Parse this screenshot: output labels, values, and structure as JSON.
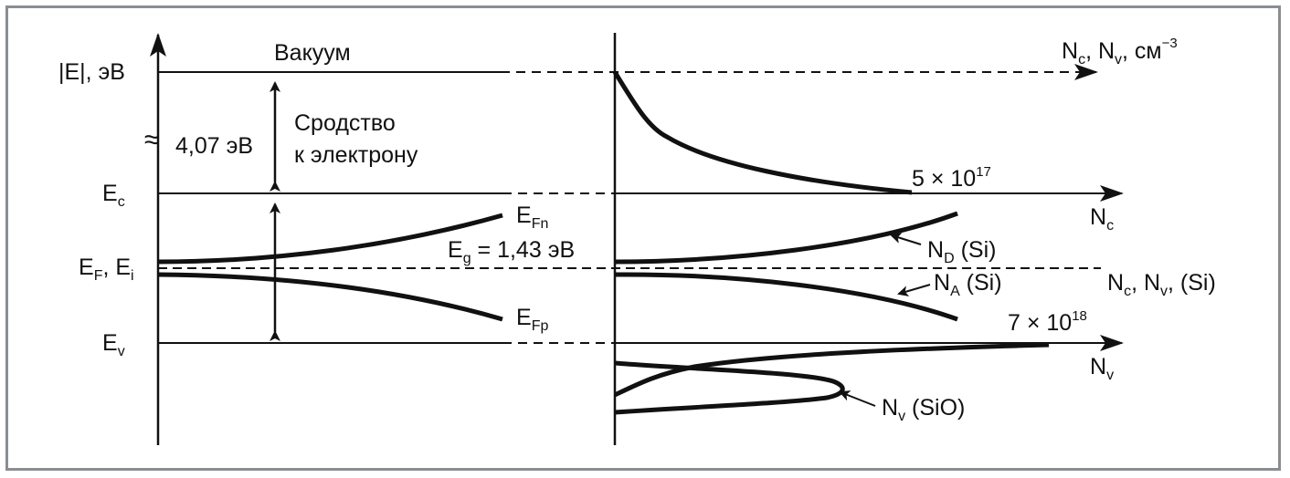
{
  "diagram": {
    "left": {
      "axis_label": "|E|, эВ",
      "vacuum": "Вакуум",
      "break_symbol": "≈",
      "work_value": "4,07 эВ",
      "affinity_line1": "Сродство",
      "affinity_line2": "к электрону",
      "ec": {
        "main": "E",
        "sub": "c"
      },
      "ef_ei": {
        "main1": "E",
        "sub1": "F",
        "sep": ", E",
        "sub2": "i"
      },
      "ev": {
        "main": "E",
        "sub": "v"
      },
      "efn": {
        "main": "E",
        "sub": "Fn"
      },
      "efp": {
        "main": "E",
        "sub": "Fp"
      },
      "eg": {
        "main": "E",
        "sub": "g",
        "value": " = 1,43 эВ"
      }
    },
    "right": {
      "axis_top": {
        "n1": "N",
        "s1": "c",
        "sep": ", N",
        "s2": "v",
        "unit": ", см",
        "sup": "−3"
      },
      "nc_max": {
        "text": "5 × 10",
        "sup": "17"
      },
      "nc_axis": {
        "main": "N",
        "sub": "c"
      },
      "nd": {
        "main": "N",
        "sub": "D",
        "rest": " (Si)"
      },
      "na": {
        "main": "N",
        "sub": "A",
        "rest": " (Si)"
      },
      "ncnv_si": {
        "n1": "N",
        "s1": "c",
        "sep": ", N",
        "s2": "v",
        "rest": ", (Si)"
      },
      "nv_max": {
        "text": "7 × 10",
        "sup": "18"
      },
      "nv_axis": {
        "main": "N",
        "sub": "v"
      },
      "nv_sio": {
        "main": "N",
        "sub": "v",
        "rest": " (SiO)"
      }
    },
    "colors": {
      "line": "#111111",
      "frame": "#8a8d91",
      "background": "#ffffff"
    }
  }
}
